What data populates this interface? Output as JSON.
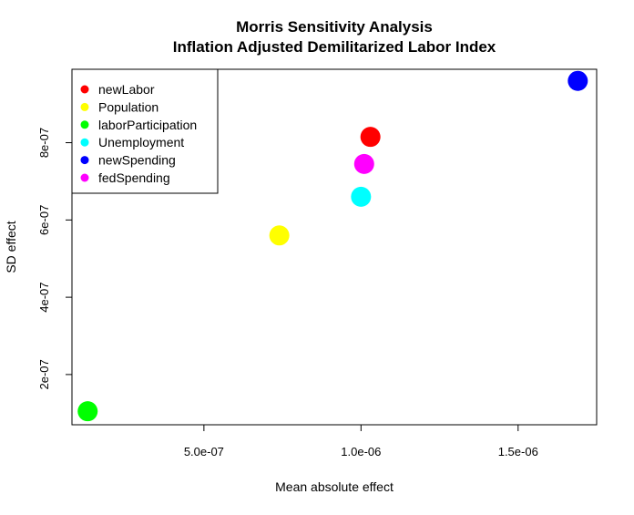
{
  "chart_data": {
    "type": "scatter",
    "title": "Morris Sensitivity Analysis",
    "subtitle": "Inflation Adjusted Demilitarized Labor Index",
    "xlabel": "Mean absolute effect",
    "ylabel": "SD effect",
    "xlim": [
      8e-08,
      1.75e-06
    ],
    "ylim": [
      7e-08,
      9.9e-07
    ],
    "x_ticks": [
      {
        "value": 5e-07,
        "label": "5.0e-07"
      },
      {
        "value": 1e-06,
        "label": "1.0e-06"
      },
      {
        "value": 1.5e-06,
        "label": "1.5e-06"
      }
    ],
    "y_ticks": [
      {
        "value": 2e-07,
        "label": "2e-07"
      },
      {
        "value": 4e-07,
        "label": "4e-07"
      },
      {
        "value": 6e-07,
        "label": "6e-07"
      },
      {
        "value": 8e-07,
        "label": "8e-07"
      }
    ],
    "grid": false,
    "legend_position": "top-left",
    "series": [
      {
        "name": "newLabor",
        "color": "#ff0000",
        "x": 1.03e-06,
        "y": 8.15e-07
      },
      {
        "name": "Population",
        "color": "#ffff00",
        "x": 7.4e-07,
        "y": 5.6e-07
      },
      {
        "name": "laborParticipation",
        "color": "#00ff00",
        "x": 1.3e-07,
        "y": 1.05e-07
      },
      {
        "name": "Unemployment",
        "color": "#00ffff",
        "x": 1e-06,
        "y": 6.6e-07
      },
      {
        "name": "newSpending",
        "color": "#0000ff",
        "x": 1.69e-06,
        "y": 9.6e-07
      },
      {
        "name": "fedSpending",
        "color": "#ff00ff",
        "x": 1.01e-06,
        "y": 7.45e-07
      }
    ]
  }
}
